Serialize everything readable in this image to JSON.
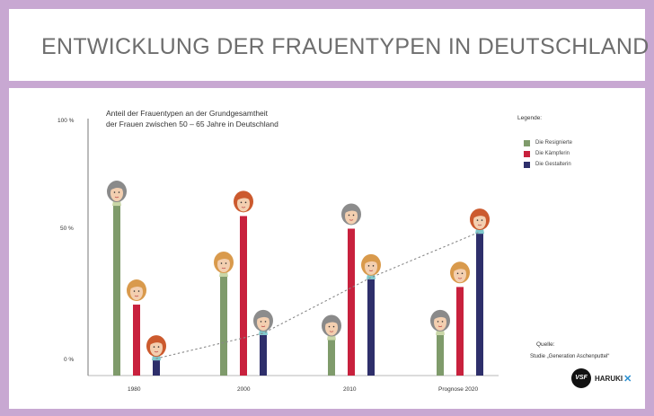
{
  "header": {
    "title": "ENTWICKLUNG DER FRAUENTYPEN IN DEUTSCHLAND"
  },
  "chart_data": {
    "type": "bar",
    "title": "Anteil der Frauentypen an der Grundgesamtheit der Frauen zwischen 50 – 65 Jahre in Deutschland",
    "title_lines": [
      "Anteil der Frauentypen an der Grundgesamtheit",
      "der Frauen zwischen 50 – 65 Jahre in Deutschland"
    ],
    "categories": [
      "1980",
      "2000",
      "2010",
      "Prognose 2020"
    ],
    "series": [
      {
        "name": "Die Resignierte",
        "color": "#7f9b6b",
        "values": [
          67,
          39,
          14,
          16
        ]
      },
      {
        "name": "Die Kämpferin",
        "color": "#c8213d",
        "values": [
          28,
          63,
          58,
          35
        ]
      },
      {
        "name": "Die Gestalterin",
        "color": "#2e2f6b",
        "values": [
          6,
          16,
          38,
          56
        ]
      }
    ],
    "yticks": [
      "100 %",
      "50 %",
      "0 %"
    ],
    "ylim": [
      0,
      100
    ],
    "xlabel": "",
    "ylabel": "",
    "trend_line": "dotted",
    "legend": {
      "title": "Legende:",
      "placement": "top-right"
    },
    "source": {
      "label": "Quelle:",
      "text": "Studie „Generation Aschenputtel“"
    },
    "logos": [
      "VSF",
      "HARUKI"
    ]
  }
}
